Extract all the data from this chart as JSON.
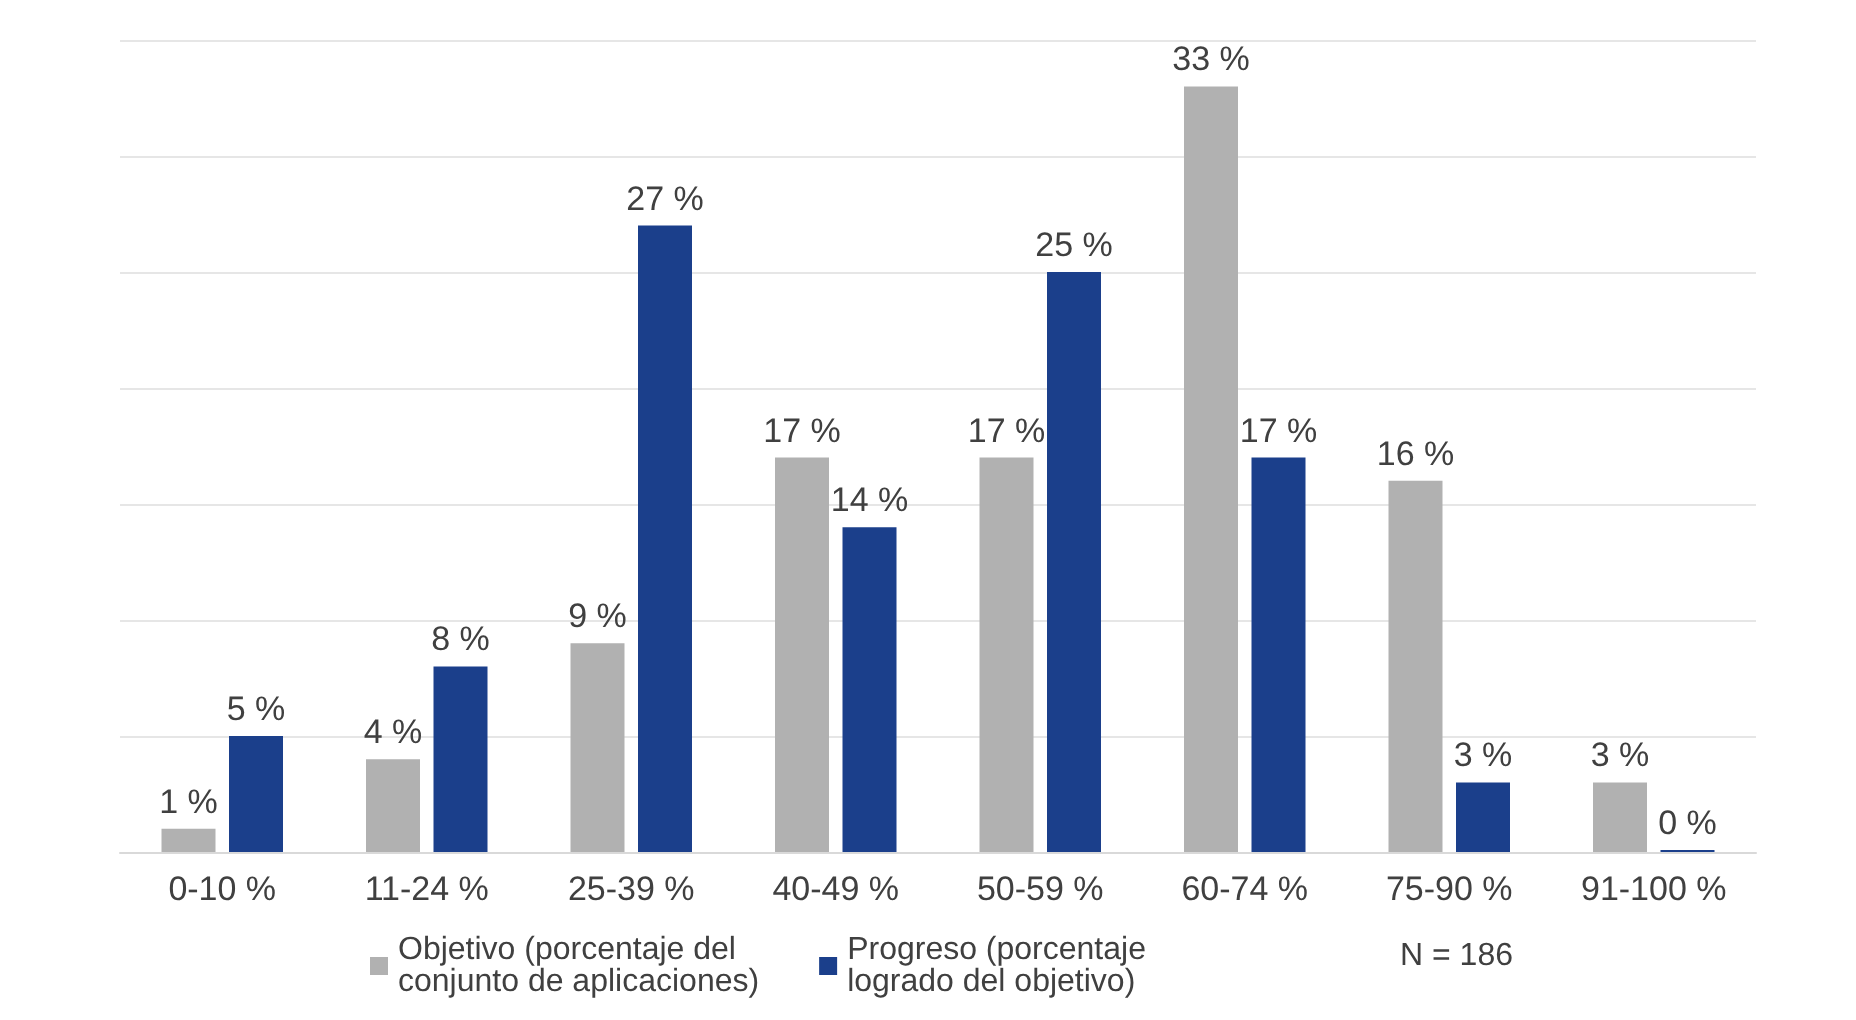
{
  "chart_data": {
    "type": "bar",
    "categories": [
      "0-10 %",
      "11-24 %",
      "25-39 %",
      "40-49 %",
      "50-59 %",
      "60-74 %",
      "75-90 %",
      "91-100 %"
    ],
    "series": [
      {
        "name": "Objetivo (porcentaje del\nconjunto de aplicaciones)",
        "color": "#b1b1b1",
        "values": [
          1,
          4,
          9,
          17,
          17,
          33,
          16,
          3
        ],
        "value_labels": [
          "1 %",
          "4 %",
          "9 %",
          "17 %",
          "17 %",
          "33 %",
          "16 %",
          "3 %"
        ]
      },
      {
        "name": "Progreso (porcentaje\nlogrado del objetivo)",
        "color": "#1b3f8b",
        "values": [
          5,
          8,
          27,
          14,
          25,
          17,
          3,
          0
        ],
        "value_labels": [
          "5 %",
          "8 %",
          "27 %",
          "14 %",
          "25 %",
          "17 %",
          "3 %",
          "0 %"
        ]
      }
    ],
    "ylim": [
      0,
      35
    ],
    "yticks": [
      0,
      5,
      10,
      15,
      20,
      25,
      30,
      35
    ],
    "tick_labels": "x",
    "grid": "y",
    "legend": "bottom",
    "annotations": [
      "N = 186"
    ]
  }
}
